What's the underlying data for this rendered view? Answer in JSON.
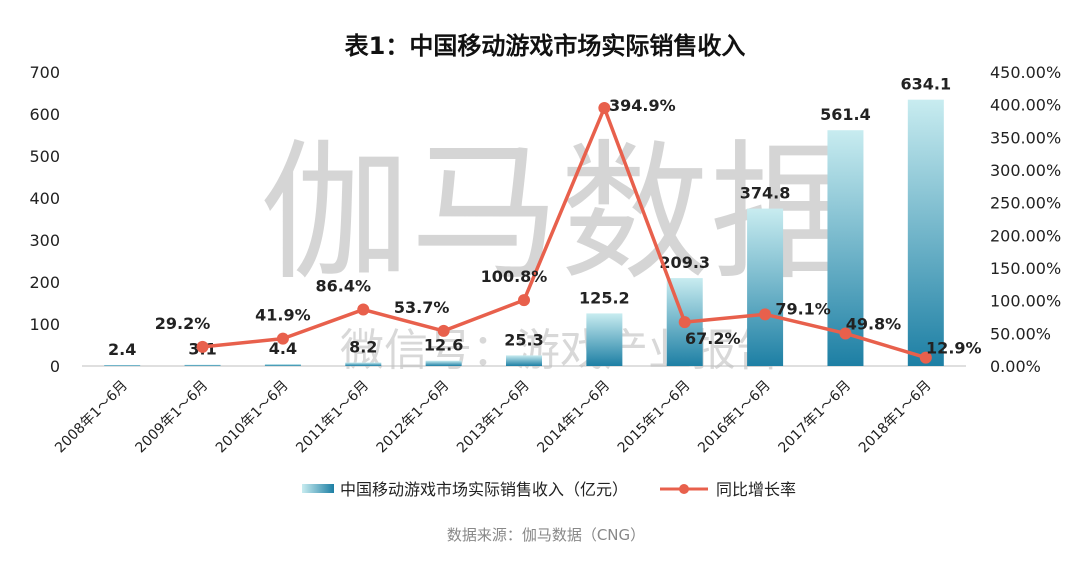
{
  "chart_data": {
    "type": "bar",
    "title": "表1：中国移动游戏市场实际销售收入",
    "categories": [
      "2008年1～6月",
      "2009年1～6月",
      "2010年1～6月",
      "2011年1～6月",
      "2012年1～6月",
      "2013年1～6月",
      "2014年1～6月",
      "2015年1～6月",
      "2016年1～6月",
      "2017年1～6月",
      "2018年1～6月"
    ],
    "series": [
      {
        "name": "中国移动游戏市场实际销售收入（亿元）",
        "type": "bar",
        "axis": "left",
        "values": [
          2.4,
          3.1,
          4.4,
          8.2,
          12.6,
          25.3,
          125.2,
          209.3,
          374.8,
          561.4,
          634.1
        ],
        "labels": [
          "2.4",
          "3.1",
          "4.4",
          "8.2",
          "12.6",
          "25.3",
          "125.2",
          "209.3",
          "374.8",
          "561.4",
          "634.1"
        ]
      },
      {
        "name": "同比增长率",
        "type": "line",
        "axis": "right",
        "values": [
          null,
          29.2,
          41.9,
          86.4,
          53.7,
          100.8,
          394.9,
          67.2,
          79.1,
          49.8,
          12.9
        ],
        "labels": [
          "",
          "29.2%",
          "41.9%",
          "86.4%",
          "53.7%",
          "100.8%",
          "394.9%",
          "67.2%",
          "79.1%",
          "49.8%",
          "12.9%"
        ]
      }
    ],
    "ylim_left": [
      0,
      700
    ],
    "yticks_left": [
      "700",
      "600",
      "500",
      "400",
      "300",
      "200",
      "100",
      "0"
    ],
    "ylim_right": [
      0,
      450
    ],
    "yticks_right": [
      "450.00%",
      "400.00%",
      "350.00%",
      "300.00%",
      "250.00%",
      "200.00%",
      "150.00%",
      "100.00%",
      "50.00%",
      "0.00%"
    ],
    "grid": false,
    "legend_position": "bottom",
    "source": "数据来源：伽马数据（CNG）",
    "watermark": "伽马数据",
    "watermark_sub": "微信号：游戏产业报告",
    "colors": {
      "bar_top": "#c8ecf0",
      "bar_bottom": "#1d7fa4",
      "line": "#e8604c",
      "axis": "#bfbfbf"
    }
  }
}
